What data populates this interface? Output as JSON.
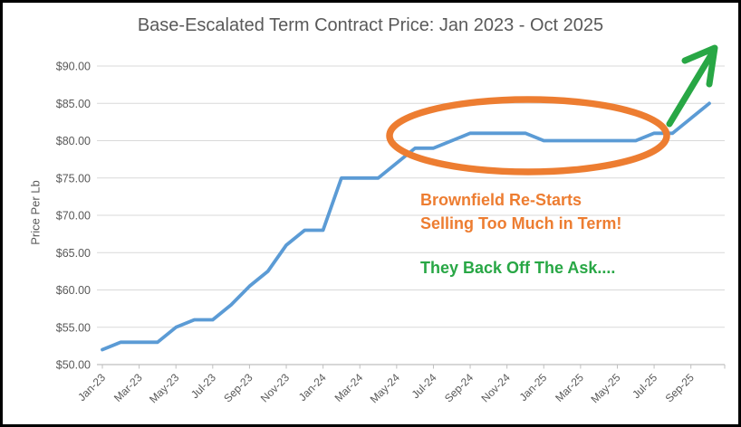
{
  "chart_data": {
    "type": "line",
    "title": "Base-Escalated Term Contract Price: Jan 2023 - Oct 2025",
    "ylabel": "Price Per Lb",
    "xlabel": "",
    "ylim": [
      50,
      90
    ],
    "ytick_step": 5,
    "grid": true,
    "legend": "none",
    "ytick_labels": [
      "$50.00",
      "$55.00",
      "$60.00",
      "$65.00",
      "$70.00",
      "$75.00",
      "$80.00",
      "$85.00",
      "$90.00"
    ],
    "xtick_labels": [
      "Jan-23",
      "Mar-23",
      "May-23",
      "Jul-23",
      "Sep-23",
      "Nov-23",
      "Jan-24",
      "Mar-24",
      "May-24",
      "Jul-24",
      "Sep-24",
      "Nov-24",
      "Jan-25",
      "Mar-25",
      "May-25",
      "Jul-25",
      "Sep-25"
    ],
    "x": [
      "Jan-23",
      "Feb-23",
      "Mar-23",
      "Apr-23",
      "May-23",
      "Jun-23",
      "Jul-23",
      "Aug-23",
      "Sep-23",
      "Oct-23",
      "Nov-23",
      "Dec-23",
      "Jan-24",
      "Feb-24",
      "Mar-24",
      "Apr-24",
      "May-24",
      "Jun-24",
      "Jul-24",
      "Aug-24",
      "Sep-24",
      "Oct-24",
      "Nov-24",
      "Dec-24",
      "Jan-25",
      "Feb-25",
      "Mar-25",
      "Apr-25",
      "May-25",
      "Jun-25",
      "Jul-25",
      "Aug-25",
      "Sep-25",
      "Oct-25"
    ],
    "series": [
      {
        "color": "#5B9BD5",
        "values": [
          52,
          53,
          53,
          53,
          55,
          56,
          56,
          58,
          60.5,
          62.5,
          66,
          68,
          68,
          75,
          75,
          75,
          77,
          79,
          79,
          80,
          81,
          81,
          81,
          81,
          80,
          80,
          80,
          80,
          80,
          80,
          81,
          81,
          83,
          85
        ]
      }
    ],
    "annotations": [
      {
        "id": "brownfield-note",
        "lines": [
          "Brownfield Re-Starts",
          "Selling Too Much in Term!"
        ],
        "color": "#ED7D31"
      },
      {
        "id": "backoff-note",
        "lines": [
          "They Back Off The Ask...."
        ],
        "color": "#28A745"
      },
      {
        "id": "highlight-ellipse",
        "shape": "ellipse",
        "color": "#ED7D31"
      },
      {
        "id": "up-arrow",
        "shape": "arrow",
        "color": "#28A745"
      }
    ],
    "colors": {
      "title_text": "#595959",
      "axis_text": "#595959",
      "gridline": "#D9D9D9",
      "axis_line": "#BFBFBF"
    }
  }
}
